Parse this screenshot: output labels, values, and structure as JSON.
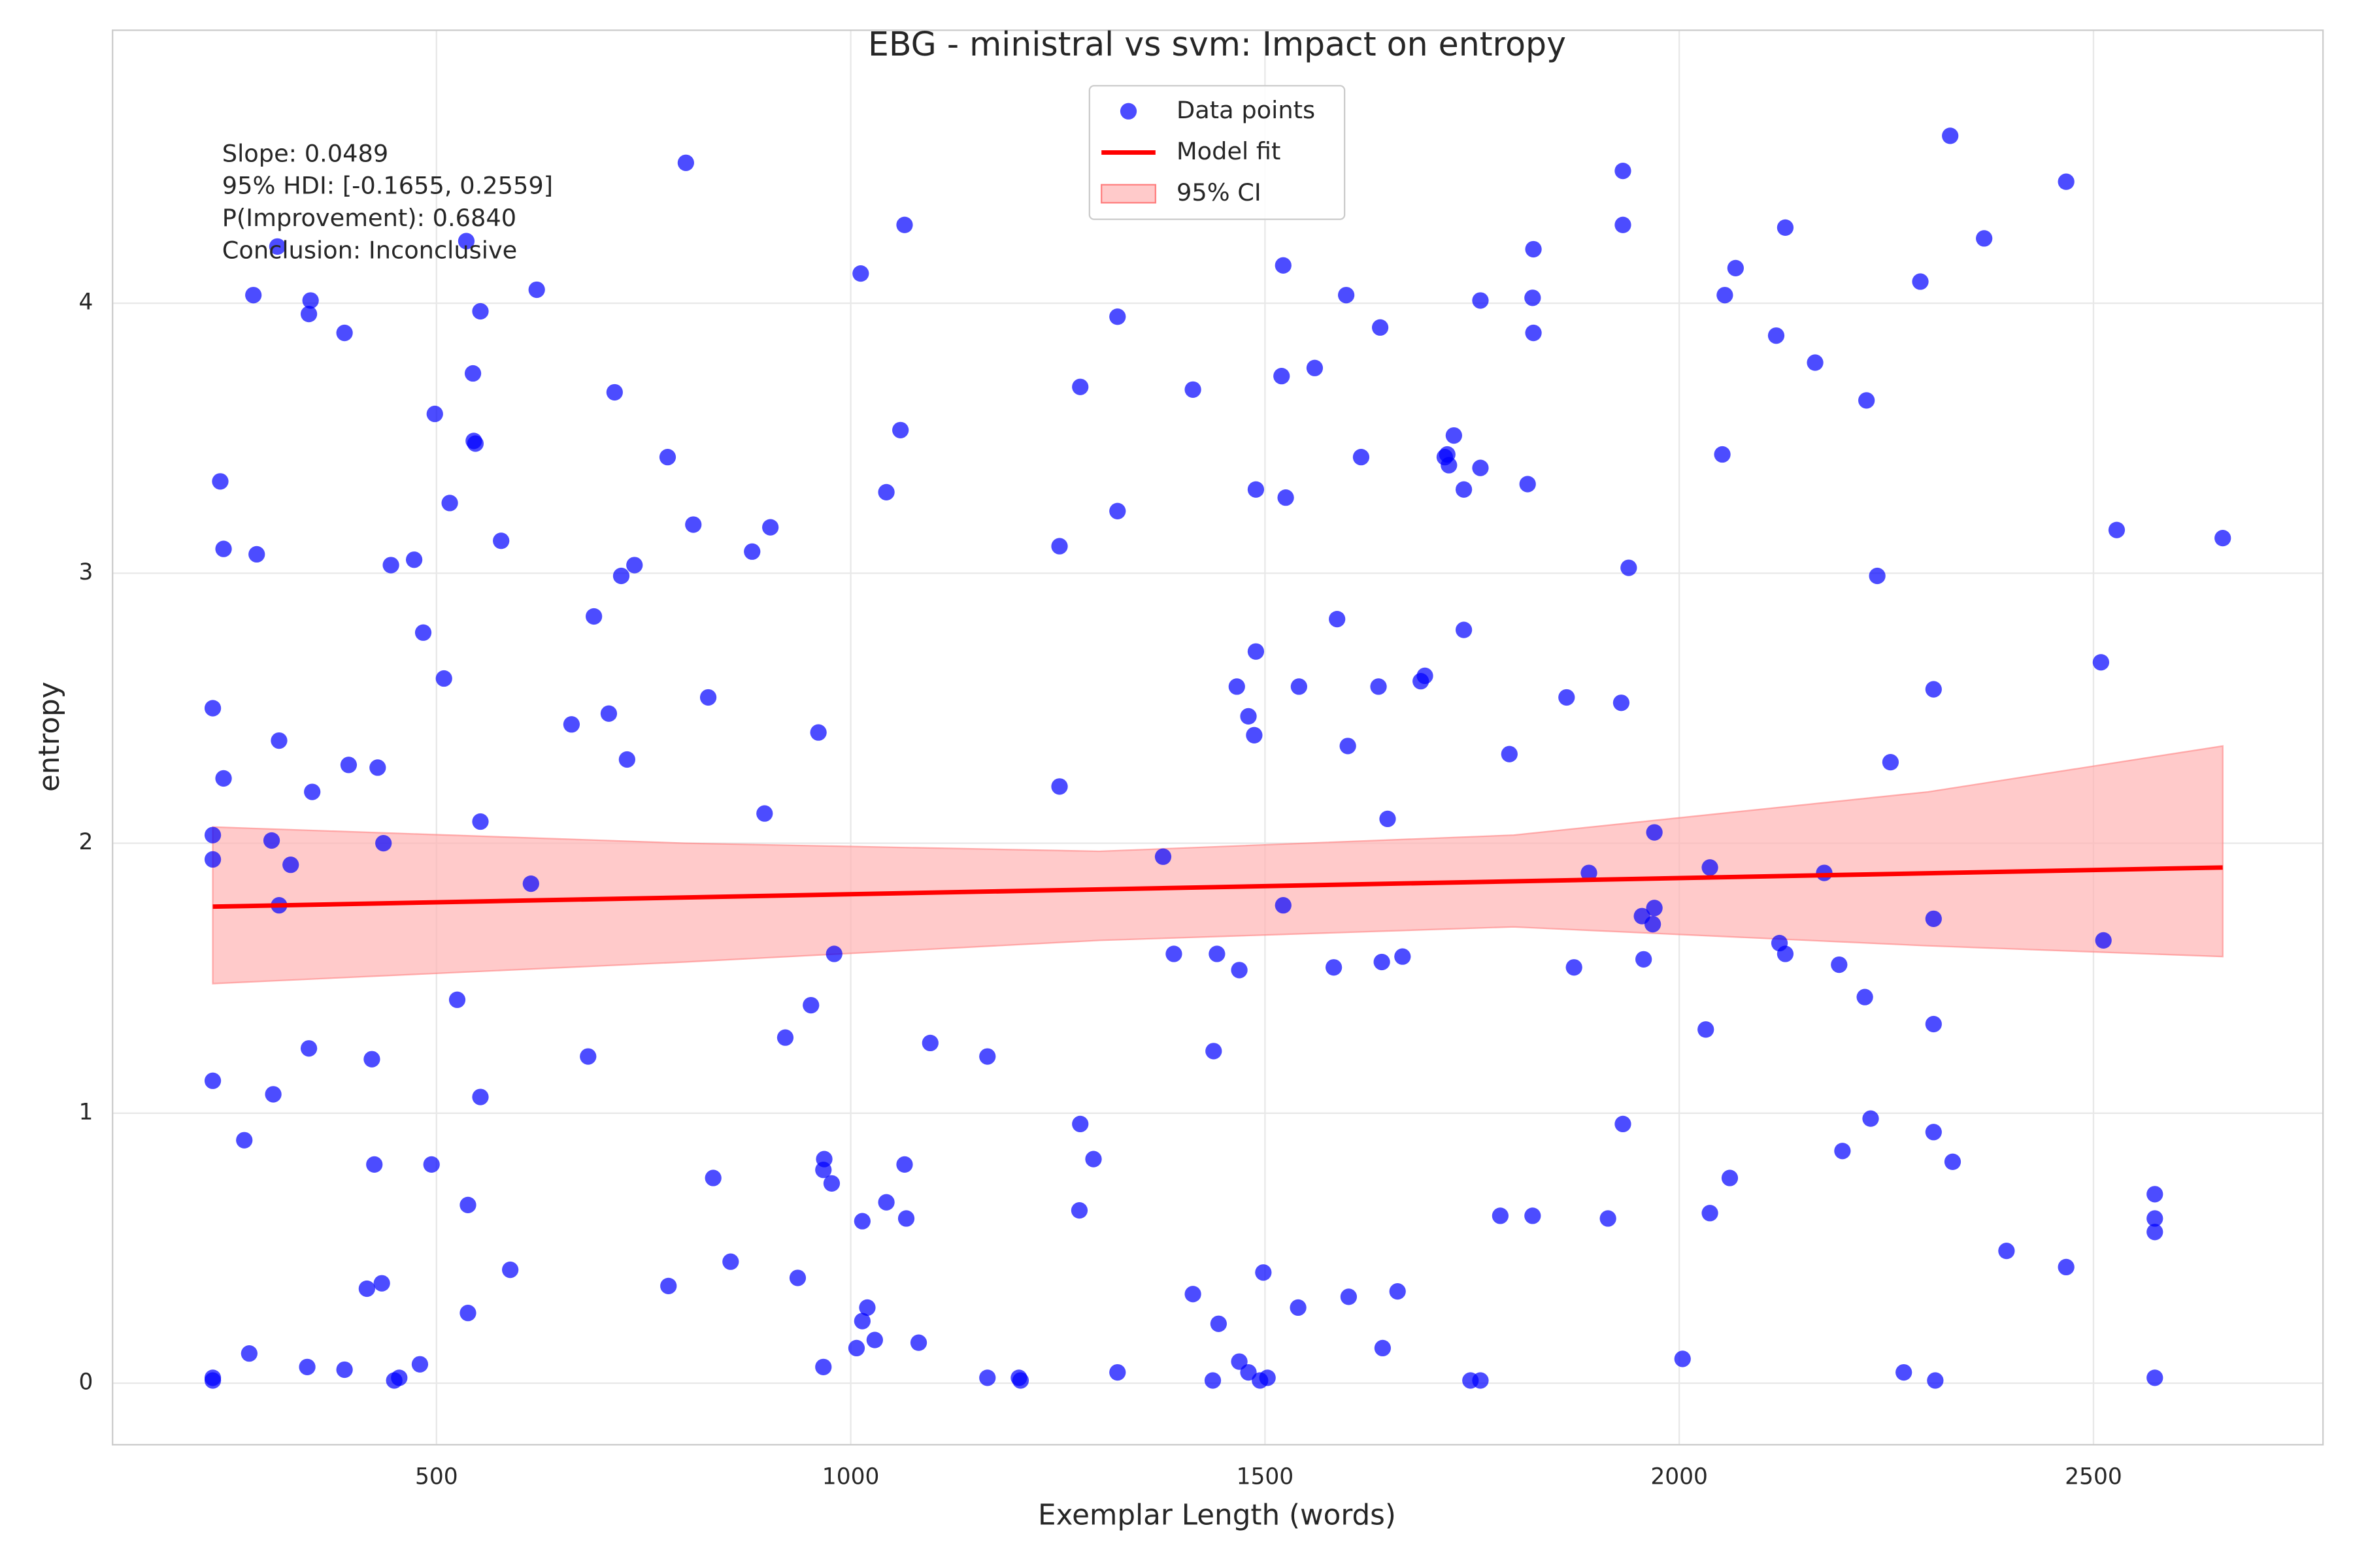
{
  "chart_data": {
    "type": "scatter",
    "title": "EBG - ministral vs svm: Impact on entropy",
    "x_label": "Exemplar Length (words)",
    "y_label": "entropy",
    "annotation": [
      "Slope: 0.0489",
      "95% HDI: [-0.1655, 0.2559]",
      "P(Improvement): 0.6840",
      "Conclusion: Inconclusive"
    ],
    "xlim": [
      109,
      2777
    ],
    "ylim": [
      -0.228,
      5.011
    ],
    "xticks": [
      500,
      1000,
      1500,
      2000,
      2500
    ],
    "yticks": [
      0,
      1,
      2,
      3,
      4
    ],
    "grid": true,
    "legend": "upper center",
    "series": [
      {
        "name": "Data points",
        "type": "scatter",
        "color": "#0000ff",
        "x": [
          230,
          230,
          230,
          230,
          230,
          230,
          239,
          243,
          243,
          268,
          274,
          279,
          283,
          301,
          303,
          310,
          310,
          308,
          324,
          344,
          346,
          348,
          346,
          350,
          389,
          389,
          394,
          416,
          422,
          425,
          429,
          434,
          436,
          445,
          449,
          455,
          473,
          480,
          484,
          494,
          498,
          509,
          516,
          525,
          536,
          538,
          538,
          544,
          545,
          547,
          553,
          553,
          553,
          578,
          589,
          614,
          621,
          663,
          683,
          690,
          708,
          715,
          723,
          730,
          739,
          779,
          780,
          801,
          810,
          828,
          834,
          855,
          881,
          896,
          903,
          921,
          936,
          952,
          961,
          967,
          968,
          967,
          977,
          980,
          1007,
          1012,
          1014,
          1014,
          1020,
          1029,
          1043,
          1043,
          1060,
          1065,
          1065,
          1067,
          1082,
          1096,
          1165,
          1165,
          1203,
          1205,
          1252,
          1252,
          1276,
          1277,
          1277,
          1293,
          1322,
          1322,
          1322,
          1377,
          1390,
          1413,
          1413,
          1437,
          1438,
          1442,
          1444,
          1466,
          1469,
          1469,
          1480,
          1480,
          1487,
          1489,
          1489,
          1494,
          1498,
          1503,
          1520,
          1522,
          1522,
          1525,
          1540,
          1541,
          1560,
          1583,
          1587,
          1598,
          1600,
          1601,
          1616,
          1637,
          1639,
          1641,
          1642,
          1648,
          1660,
          1666,
          1688,
          1693,
          1717,
          1720,
          1722,
          1728,
          1740,
          1740,
          1748,
          1760,
          1760,
          1760,
          1784,
          1795,
          1817,
          1823,
          1824,
          1824,
          1823,
          1864,
          1873,
          1891,
          1914,
          1930,
          1932,
          1932,
          1932,
          1939,
          1955,
          1957,
          1968,
          1970,
          1970,
          2004,
          2032,
          2037,
          2037,
          2052,
          2055,
          2061,
          2068,
          2117,
          2121,
          2128,
          2128,
          2164,
          2175,
          2193,
          2197,
          2224,
          2226,
          2231,
          2239,
          2255,
          2271,
          2291,
          2307,
          2307,
          2307,
          2307,
          2309,
          2327,
          2330,
          2368,
          2395,
          2467,
          2467,
          2509,
          2512,
          2528,
          2574,
          2574,
          2574,
          2574,
          2656
        ],
        "values": [
          0.01,
          0.02,
          1.12,
          2.5,
          2.03,
          1.94,
          3.34,
          3.09,
          2.24,
          0.9,
          0.11,
          4.03,
          3.07,
          2.01,
          1.07,
          2.38,
          1.77,
          4.21,
          1.92,
          0.06,
          3.96,
          4.01,
          1.24,
          2.19,
          3.89,
          0.05,
          2.29,
          0.35,
          1.2,
          0.81,
          2.28,
          0.37,
          2.0,
          3.03,
          0.01,
          0.02,
          3.05,
          0.07,
          2.78,
          0.81,
          3.59,
          2.61,
          3.26,
          1.42,
          4.23,
          0.66,
          0.26,
          3.74,
          3.49,
          3.48,
          3.97,
          2.08,
          1.06,
          3.12,
          0.42,
          1.85,
          4.05,
          2.44,
          1.21,
          2.84,
          2.48,
          3.67,
          2.99,
          2.31,
          3.03,
          3.43,
          0.36,
          4.52,
          3.18,
          2.54,
          0.76,
          0.45,
          3.08,
          2.11,
          3.17,
          1.28,
          0.39,
          1.4,
          2.41,
          0.79,
          0.83,
          0.06,
          0.74,
          1.59,
          0.13,
          4.11,
          0.6,
          0.23,
          0.28,
          0.16,
          3.3,
          0.67,
          3.53,
          4.29,
          0.81,
          0.61,
          0.15,
          1.26,
          1.21,
          0.02,
          0.02,
          0.01,
          3.1,
          2.21,
          0.64,
          0.96,
          3.69,
          0.83,
          3.95,
          3.23,
          0.04,
          1.95,
          1.59,
          3.68,
          0.33,
          0.01,
          1.23,
          1.59,
          0.22,
          2.58,
          0.08,
          1.53,
          2.47,
          0.04,
          2.4,
          2.71,
          3.31,
          0.01,
          0.41,
          0.02,
          3.73,
          1.77,
          4.14,
          3.28,
          0.28,
          2.58,
          3.76,
          1.54,
          2.83,
          4.03,
          2.36,
          0.32,
          3.43,
          2.58,
          3.91,
          1.56,
          0.13,
          2.09,
          0.34,
          1.58,
          2.6,
          2.62,
          3.43,
          3.44,
          3.4,
          3.51,
          3.31,
          2.79,
          0.01,
          0.01,
          4.01,
          3.39,
          0.62,
          2.33,
          3.33,
          4.02,
          4.2,
          3.89,
          0.62,
          2.54,
          1.54,
          1.89,
          0.61,
          2.52,
          4.49,
          4.29,
          0.96,
          3.02,
          1.73,
          1.57,
          1.7,
          1.76,
          2.04,
          0.09,
          1.31,
          1.91,
          0.63,
          3.44,
          4.03,
          0.76,
          4.13,
          3.88,
          1.63,
          4.28,
          1.59,
          3.78,
          1.89,
          1.55,
          0.86,
          1.43,
          3.64,
          0.98,
          2.99,
          2.3,
          0.04,
          4.08,
          2.57,
          1.72,
          1.33,
          0.93,
          0.01,
          4.62,
          0.82,
          4.24,
          0.49,
          0.43,
          4.45,
          2.67,
          1.64,
          3.16,
          0.7,
          0.61,
          0.56,
          0.02,
          3.13
        ]
      },
      {
        "name": "Model fit",
        "type": "line",
        "color": "#ff0000",
        "x": [
          230,
          2656
        ],
        "values": [
          1.765,
          1.91
        ]
      },
      {
        "name": "95% CI",
        "type": "band",
        "color": "#ffb3b3",
        "x": [
          230,
          800,
          1300,
          1800,
          2300,
          2656
        ],
        "upper": [
          2.06,
          2.0,
          1.97,
          2.03,
          2.19,
          2.36
        ],
        "lower": [
          1.48,
          1.56,
          1.64,
          1.69,
          1.62,
          1.58
        ]
      }
    ]
  }
}
